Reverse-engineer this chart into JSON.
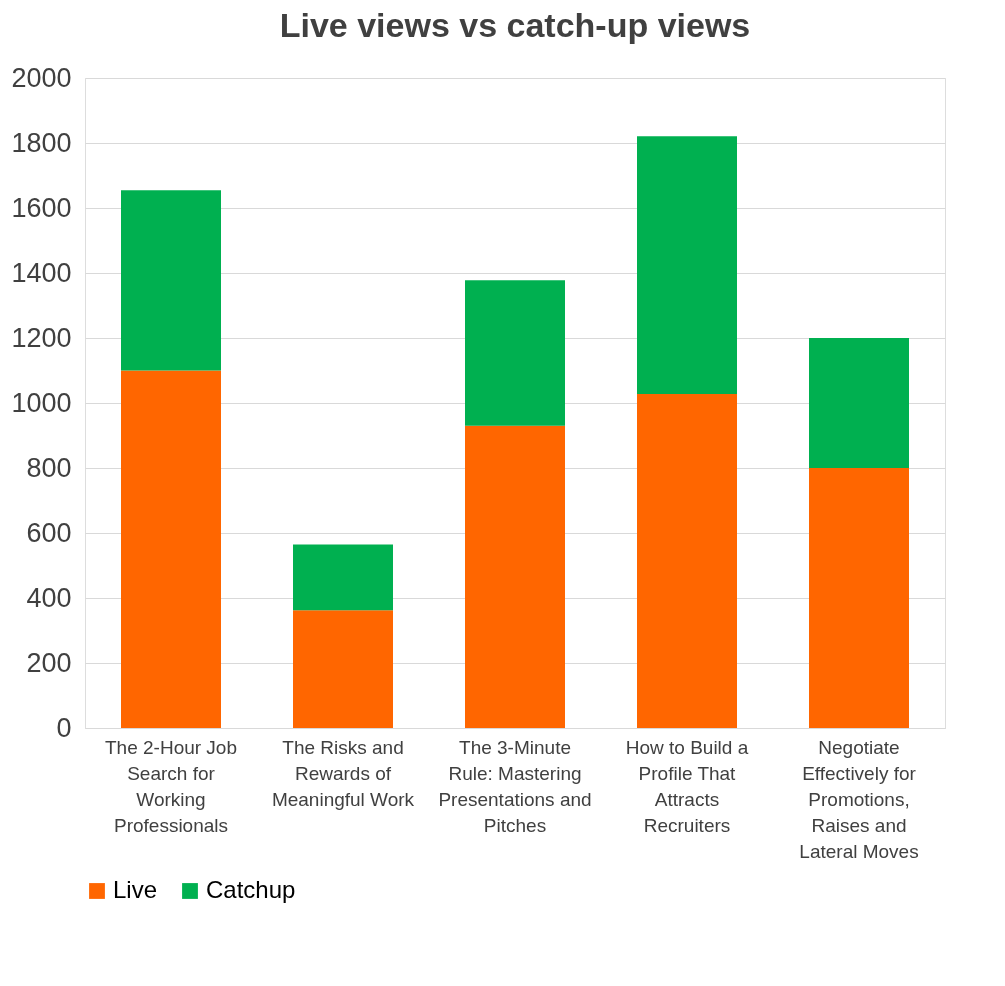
{
  "chart_data": {
    "type": "bar",
    "title": "Live views vs catch-up views",
    "stacked": true,
    "categories": [
      "The 2-Hour Job Search for Working Professionals",
      "The Risks and Rewards of Meaningful Work",
      "The 3-Minute Rule: Mastering Presentations and Pitches",
      "How to Build a Profile That Attracts Recruiters",
      "Negotiate Effectively for Promotions, Raises and Lateral Moves"
    ],
    "series": [
      {
        "name": "Live",
        "color": "#ff6600",
        "values": [
          1100,
          362,
          930,
          1028,
          800
        ]
      },
      {
        "name": "Catchup",
        "color": "#00b050",
        "values": [
          555,
          203,
          448,
          793,
          400
        ]
      }
    ],
    "ylim": [
      0,
      2000
    ],
    "yticks": [
      0,
      200,
      400,
      600,
      800,
      1000,
      1200,
      1400,
      1600,
      1800,
      2000
    ],
    "grid": "y",
    "legend": "bottom"
  }
}
